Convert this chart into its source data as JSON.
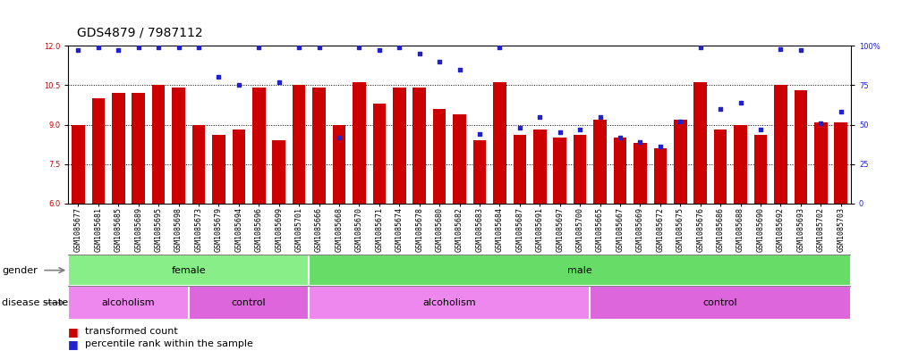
{
  "title": "GDS4879 / 7987112",
  "samples": [
    "GSM1085677",
    "GSM1085681",
    "GSM1085685",
    "GSM1085689",
    "GSM1085695",
    "GSM1085698",
    "GSM1085673",
    "GSM1085679",
    "GSM1085694",
    "GSM1085696",
    "GSM1085699",
    "GSM1085701",
    "GSM1085666",
    "GSM1085668",
    "GSM1085670",
    "GSM1085671",
    "GSM1085674",
    "GSM1085678",
    "GSM1085680",
    "GSM1085682",
    "GSM1085683",
    "GSM1085684",
    "GSM1085687",
    "GSM1085691",
    "GSM1085697",
    "GSM1085700",
    "GSM1085665",
    "GSM1085667",
    "GSM1085669",
    "GSM1085672",
    "GSM1085675",
    "GSM1085676",
    "GSM1085686",
    "GSM1085688",
    "GSM1085690",
    "GSM1085692",
    "GSM1085693",
    "GSM1085702",
    "GSM1085703"
  ],
  "bar_values": [
    9.0,
    10.0,
    10.2,
    10.2,
    10.5,
    10.4,
    9.0,
    8.6,
    8.8,
    10.4,
    8.4,
    10.5,
    10.4,
    9.0,
    10.6,
    9.8,
    10.4,
    10.4,
    9.6,
    9.4,
    8.4,
    10.6,
    8.6,
    8.8,
    8.5,
    8.6,
    9.2,
    8.5,
    8.3,
    8.1,
    9.2,
    10.6,
    8.8,
    9.0,
    8.6,
    10.5,
    10.3,
    9.1,
    9.1
  ],
  "percentile_values": [
    97,
    99,
    97,
    99,
    99,
    99,
    99,
    80,
    75,
    99,
    77,
    99,
    99,
    42,
    99,
    97,
    99,
    95,
    90,
    85,
    44,
    99,
    48,
    55,
    45,
    47,
    55,
    42,
    39,
    36,
    52,
    99,
    60,
    64,
    47,
    98,
    97,
    51,
    58
  ],
  "ylim_left": [
    6,
    12
  ],
  "ylim_right": [
    0,
    100
  ],
  "yticks_left": [
    6,
    7.5,
    9,
    10.5,
    12
  ],
  "yticks_right": [
    0,
    25,
    50,
    75,
    100
  ],
  "bar_color": "#CC0000",
  "dot_color": "#2222CC",
  "title_fontsize": 10,
  "tick_fontsize": 6,
  "band_fontsize": 8,
  "legend_fontsize": 8,
  "gender_segments": [
    {
      "label": "female",
      "start": 0,
      "end": 11,
      "color": "#88EE88"
    },
    {
      "label": "male",
      "start": 12,
      "end": 38,
      "color": "#66DD66"
    }
  ],
  "disease_segments": [
    {
      "label": "alcoholism",
      "start": 0,
      "end": 5,
      "color": "#EE88EE"
    },
    {
      "label": "control",
      "start": 6,
      "end": 11,
      "color": "#DD66DD"
    },
    {
      "label": "alcoholism",
      "start": 12,
      "end": 25,
      "color": "#EE88EE"
    },
    {
      "label": "control",
      "start": 26,
      "end": 38,
      "color": "#DD66DD"
    }
  ]
}
